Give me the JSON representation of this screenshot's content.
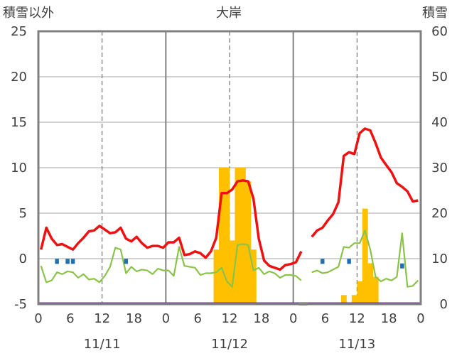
{
  "chart_data": {
    "type": "bar+line",
    "title": "大岸",
    "left_axis_label": "積雪以外",
    "right_axis_label": "積雪",
    "left_ylim": [
      -5,
      25
    ],
    "left_yticks": [
      -5,
      0,
      5,
      10,
      15,
      20,
      25
    ],
    "right_ylim": [
      0,
      60
    ],
    "right_yticks": [
      0,
      10,
      20,
      30,
      40,
      50,
      60
    ],
    "x_range_hours": [
      0,
      72
    ],
    "x_tick_labels": [
      {
        "h": 0,
        "label": "0"
      },
      {
        "h": 6,
        "label": "6"
      },
      {
        "h": 12,
        "label": "12"
      },
      {
        "h": 18,
        "label": "18"
      },
      {
        "h": 24,
        "label": "0"
      },
      {
        "h": 30,
        "label": "6"
      },
      {
        "h": 36,
        "label": "12"
      },
      {
        "h": 42,
        "label": "18"
      },
      {
        "h": 48,
        "label": "0"
      },
      {
        "h": 54,
        "label": "6"
      },
      {
        "h": 60,
        "label": "12"
      },
      {
        "h": 66,
        "label": "18"
      },
      {
        "h": 72,
        "label": "0"
      }
    ],
    "date_labels": [
      {
        "h": 12,
        "label": "11/11"
      },
      {
        "h": 36,
        "label": "11/12"
      },
      {
        "h": 60,
        "label": "11/13"
      }
    ],
    "day_boundaries_h": [
      24,
      48
    ],
    "dashed_lines_h": [
      12,
      36,
      60
    ],
    "colors": {
      "red": "#ee1111",
      "green": "#8bc34a",
      "snow": "#ffc000",
      "blue": "#1f6fb2",
      "purple": "#7030a0",
      "frame": "#808080",
      "gap": "#a0a0a0"
    },
    "series": [
      {
        "kind": "line",
        "axis": "left",
        "color_key": "red",
        "segments": [
          [
            [
              0,
              1.0
            ],
            [
              1,
              3.4
            ],
            [
              2,
              2.2
            ],
            [
              3,
              1.5
            ],
            [
              4,
              1.6
            ],
            [
              5,
              1.3
            ],
            [
              6,
              1.0
            ],
            [
              7,
              1.7
            ],
            [
              8,
              2.3
            ],
            [
              9,
              3.0
            ],
            [
              10,
              3.1
            ],
            [
              11,
              3.6
            ],
            [
              12,
              3.2
            ],
            [
              13,
              2.8
            ],
            [
              14,
              2.9
            ],
            [
              15,
              3.4
            ],
            [
              16,
              2.2
            ],
            [
              17,
              1.9
            ],
            [
              18,
              2.4
            ],
            [
              19,
              1.7
            ],
            [
              20,
              1.2
            ],
            [
              21,
              1.4
            ],
            [
              22,
              1.4
            ],
            [
              23,
              1.2
            ],
            [
              24,
              1.8
            ],
            [
              25,
              1.8
            ],
            [
              26,
              2.3
            ],
            [
              27,
              0.4
            ],
            [
              28,
              0.5
            ],
            [
              29,
              0.8
            ],
            [
              30,
              0.6
            ],
            [
              31,
              0.1
            ],
            [
              32,
              0.8
            ],
            [
              33,
              2.3
            ],
            [
              34,
              7.2
            ],
            [
              35,
              7.2
            ],
            [
              36,
              7.6
            ],
            [
              37,
              8.5
            ],
            [
              38,
              8.6
            ],
            [
              39,
              8.5
            ],
            [
              40,
              6.6
            ],
            [
              41,
              2.2
            ],
            [
              42,
              -0.2
            ],
            [
              43,
              -0.8
            ],
            [
              44,
              -1.0
            ],
            [
              45,
              -1.2
            ],
            [
              46,
              -0.7
            ],
            [
              47,
              -0.6
            ],
            [
              48,
              -0.4
            ],
            [
              49,
              0.8
            ]
          ],
          [
            [
              51,
              2.4
            ],
            [
              52,
              3.1
            ],
            [
              53,
              3.4
            ],
            [
              54,
              4.2
            ],
            [
              55,
              4.9
            ],
            [
              56,
              6.2
            ],
            [
              57,
              11.3
            ],
            [
              58,
              11.7
            ],
            [
              59,
              11.5
            ],
            [
              60,
              13.8
            ],
            [
              61,
              14.3
            ],
            [
              62,
              14.1
            ],
            [
              63,
              12.7
            ],
            [
              64,
              11.1
            ],
            [
              65,
              10.3
            ],
            [
              66,
              9.5
            ],
            [
              67,
              8.3
            ],
            [
              68,
              7.9
            ],
            [
              69,
              7.4
            ],
            [
              70,
              6.3
            ],
            [
              71,
              6.4
            ]
          ]
        ]
      },
      {
        "kind": "line",
        "axis": "left",
        "color_key": "green",
        "segments": [
          [
            [
              0,
              -0.8
            ],
            [
              1,
              -2.6
            ],
            [
              2,
              -2.4
            ],
            [
              3,
              -1.5
            ],
            [
              4,
              -1.7
            ],
            [
              5,
              -1.4
            ],
            [
              6,
              -1.5
            ],
            [
              7,
              -2.1
            ],
            [
              8,
              -1.7
            ],
            [
              9,
              -2.3
            ],
            [
              10,
              -2.2
            ],
            [
              11,
              -2.6
            ],
            [
              12,
              -1.9
            ],
            [
              13,
              -0.9
            ],
            [
              14,
              1.2
            ],
            [
              15,
              1.0
            ],
            [
              16,
              -1.6
            ],
            [
              17,
              -0.9
            ],
            [
              18,
              -1.4
            ],
            [
              19,
              -1.2
            ],
            [
              20,
              -1.3
            ],
            [
              21,
              -1.7
            ],
            [
              22,
              -1.1
            ],
            [
              23,
              -1.3
            ],
            [
              24,
              -1.3
            ],
            [
              25,
              -1.9
            ],
            [
              26,
              1.3
            ],
            [
              27,
              -0.8
            ],
            [
              28,
              -0.9
            ],
            [
              29,
              -1.0
            ],
            [
              30,
              -1.8
            ],
            [
              31,
              -1.6
            ],
            [
              32,
              -1.6
            ],
            [
              33,
              -1.5
            ],
            [
              34,
              -1.0
            ],
            [
              35,
              -2.5
            ],
            [
              36,
              -3.1
            ],
            [
              37,
              1.5
            ],
            [
              38,
              1.6
            ],
            [
              39,
              1.5
            ],
            [
              40,
              -1.3
            ],
            [
              41,
              -1.0
            ],
            [
              42,
              -1.7
            ],
            [
              43,
              -1.4
            ],
            [
              44,
              -1.6
            ],
            [
              45,
              -2.1
            ],
            [
              46,
              -1.8
            ],
            [
              47,
              -1.8
            ],
            [
              48,
              -1.9
            ],
            [
              49,
              -2.4
            ]
          ],
          [
            [
              51,
              -1.5
            ],
            [
              52,
              -1.3
            ],
            [
              53,
              -1.6
            ],
            [
              54,
              -1.5
            ],
            [
              55,
              -1.2
            ],
            [
              56,
              -0.9
            ],
            [
              57,
              1.3
            ],
            [
              58,
              1.2
            ],
            [
              59,
              1.7
            ],
            [
              60,
              1.7
            ],
            [
              61,
              3.1
            ],
            [
              62,
              1.0
            ],
            [
              63,
              -2.0
            ],
            [
              64,
              -2.5
            ],
            [
              65,
              -2.2
            ],
            [
              66,
              -2.4
            ],
            [
              67,
              -2.0
            ],
            [
              68,
              2.8
            ],
            [
              69,
              -3.1
            ],
            [
              70,
              -3.0
            ],
            [
              71,
              -2.4
            ]
          ]
        ]
      }
    ],
    "snow_bars": {
      "axis": "right",
      "color_key": "snow",
      "points": [
        [
          33,
          12
        ],
        [
          34,
          30
        ],
        [
          35,
          30
        ],
        [
          36,
          14
        ],
        [
          37,
          30
        ],
        [
          38,
          30
        ],
        [
          39,
          27
        ],
        [
          40,
          12
        ],
        [
          57,
          2
        ],
        [
          59,
          2
        ],
        [
          60,
          5
        ],
        [
          61,
          21
        ],
        [
          62,
          9
        ],
        [
          63,
          6
        ]
      ]
    },
    "blue_markers": {
      "axis": "left",
      "color_key": "blue",
      "points": [
        [
          3,
          -0.3
        ],
        [
          5,
          -0.3
        ],
        [
          6,
          -0.3
        ],
        [
          16,
          -0.3
        ],
        [
          53,
          -0.3
        ],
        [
          58,
          -0.3
        ],
        [
          68,
          -0.8
        ]
      ]
    },
    "purple_line_value": -5
  }
}
